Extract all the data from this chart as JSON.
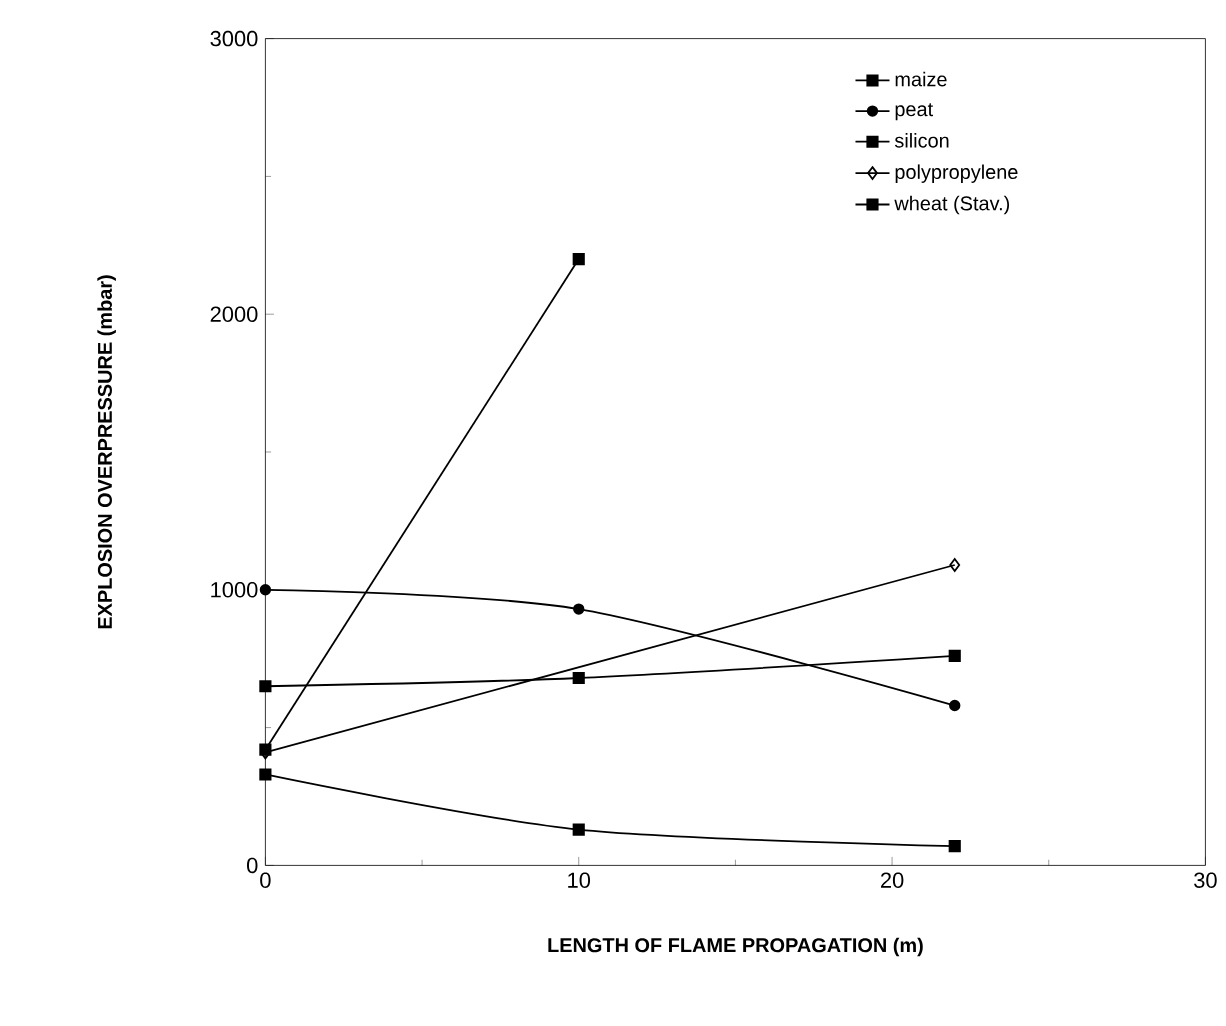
{
  "chart_data": {
    "type": "line",
    "xlabel": "LENGTH OF FLAME PROPAGATION (m)",
    "ylabel": "EXPLOSION OVERPRESSURE (mbar)",
    "xlim": [
      0,
      30
    ],
    "xticks": [
      0,
      10,
      20,
      30
    ],
    "ylim": [
      0,
      3000
    ],
    "yticks": [
      0,
      1000,
      2000,
      3000
    ],
    "legend": "top right",
    "grid": false,
    "series": [
      {
        "name": "maize",
        "color": "#000000",
        "marker": "square",
        "x": [
          0,
          10,
          22
        ],
        "values": [
          650,
          680,
          760
        ]
      },
      {
        "name": "peat",
        "color": "#000000",
        "marker": "circle",
        "x": [
          0,
          10,
          22
        ],
        "values": [
          1000,
          930,
          580
        ]
      },
      {
        "name": "silicon",
        "color": "#000000",
        "marker": "square",
        "x": [
          0,
          10,
          22
        ],
        "values": [
          330,
          130,
          70
        ]
      },
      {
        "name": "polypropylene",
        "color": "#000000",
        "marker": "diamond",
        "x": [
          0,
          22
        ],
        "values": [
          410,
          1090
        ]
      },
      {
        "name": "wheat (Stav.)",
        "color": "#000000",
        "marker": "square",
        "x": [
          0,
          10
        ],
        "values": [
          420,
          2200
        ]
      }
    ]
  }
}
